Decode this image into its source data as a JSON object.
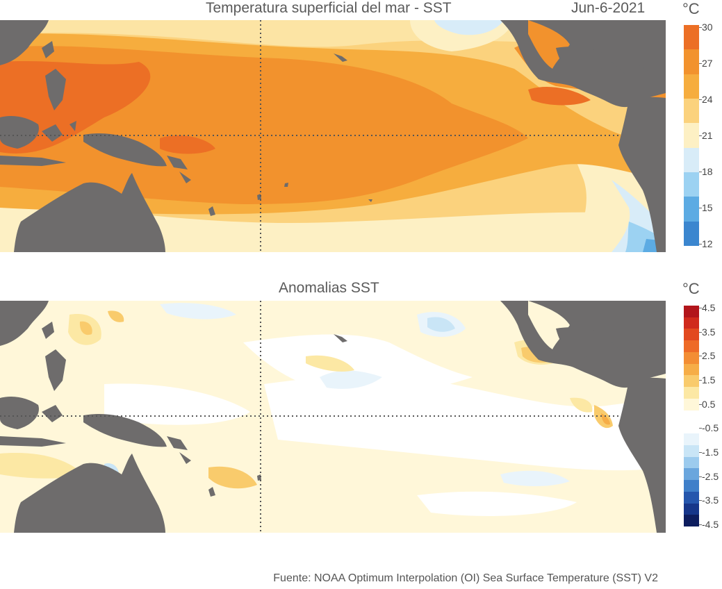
{
  "top_panel": {
    "title": "Temperatura superficial del mar - SST",
    "date": "Jun-6-2021",
    "unit": "°C",
    "colorbar": {
      "labels": [
        "30",
        "27",
        "24",
        "21",
        "18",
        "15",
        "12"
      ],
      "colors": [
        "#ec6f25",
        "#f2922d",
        "#f6ad3e",
        "#fbd27d",
        "#fdf0c4",
        "#d8ecf8",
        "#9cd2f2",
        "#5cabe3",
        "#3b86cf"
      ]
    }
  },
  "bottom_panel": {
    "title": "Anomalias SST",
    "unit": "°C",
    "colorbar": {
      "labels": [
        "4.5",
        "3.5",
        "2.5",
        "1.5",
        "0.5",
        "-0.5",
        "-1.5",
        "-2.5",
        "-3.5",
        "-4.5"
      ],
      "colors": [
        "#b2151b",
        "#d02a1c",
        "#e2491f",
        "#ee6a26",
        "#f38d33",
        "#f6ad47",
        "#f9cb6c",
        "#fce8a4",
        "#fff7d9",
        "#ffffff",
        "#ffffff",
        "#e9f4fb",
        "#c9e5f6",
        "#9ccbee",
        "#6aa6dd",
        "#3f7fc9",
        "#2556ad",
        "#16368a",
        "#0d1d5e"
      ]
    },
    "dotted_lines": "equator and 180° meridian"
  },
  "source": "Fuente: NOAA Optimum Interpolation (OI) Sea Surface Temperature (SST) V2",
  "colors": {
    "land": "#6e6c6c",
    "grid": "#555555"
  }
}
